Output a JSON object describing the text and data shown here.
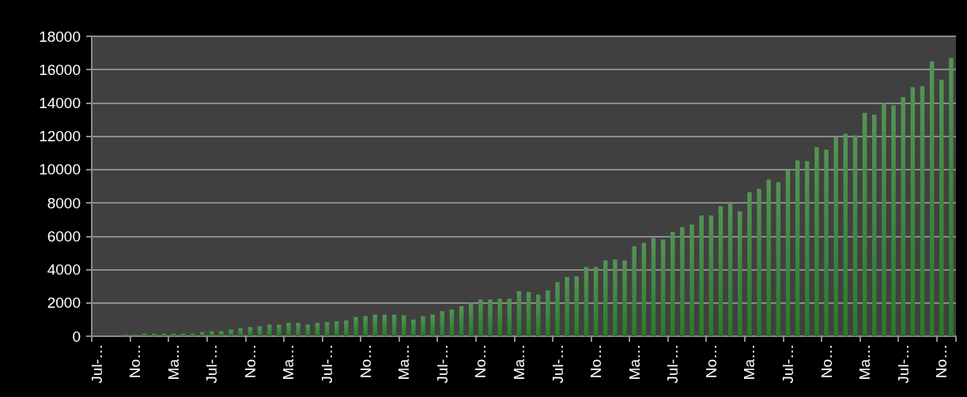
{
  "chart_data": {
    "type": "bar",
    "categories": [
      "Jul-…",
      null,
      null,
      null,
      "No…",
      null,
      null,
      null,
      "Ma…",
      null,
      null,
      null,
      "Jul-…",
      null,
      null,
      null,
      "No…",
      null,
      null,
      null,
      "Ma…",
      null,
      null,
      null,
      "Jul-…",
      null,
      null,
      null,
      "No…",
      null,
      null,
      null,
      "Ma…",
      null,
      null,
      null,
      "Jul-…",
      null,
      null,
      null,
      "No…",
      null,
      null,
      null,
      "Ma…",
      null,
      null,
      null,
      "Jul-…",
      null,
      null,
      null,
      "No…",
      null,
      null,
      null,
      "Ma…",
      null,
      null,
      null,
      "Jul-…",
      null,
      null,
      null,
      "No…",
      null,
      null,
      null,
      "Ma…",
      null,
      null,
      null,
      "Jul-…",
      null,
      null,
      null,
      "No…",
      null,
      null,
      null,
      "Ma…",
      null,
      null,
      null,
      "Jul-…",
      null,
      null,
      null,
      "No…",
      null
    ],
    "values": [
      0,
      0,
      0,
      100,
      100,
      150,
      150,
      150,
      150,
      150,
      150,
      250,
      300,
      300,
      400,
      500,
      550,
      600,
      700,
      700,
      800,
      800,
      700,
      800,
      850,
      900,
      950,
      1150,
      1200,
      1300,
      1300,
      1300,
      1250,
      1000,
      1200,
      1300,
      1500,
      1600,
      1800,
      2000,
      2200,
      2200,
      2250,
      2250,
      2700,
      2650,
      2500,
      2750,
      3250,
      3550,
      3600,
      4150,
      4150,
      4550,
      4600,
      4550,
      5400,
      5600,
      5900,
      5800,
      6250,
      6550,
      6700,
      7250,
      7250,
      7800,
      8000,
      7500,
      8650,
      8850,
      9400,
      9250,
      9950,
      10550,
      10500,
      11350,
      11200,
      11950,
      12150,
      12050,
      13400,
      13300,
      14000,
      13850,
      14350,
      14950,
      15000,
      16500,
      15400,
      16700
    ],
    "color": "#2a7a2a",
    "ylim": [
      0,
      18000
    ],
    "yticks": [
      0,
      2000,
      4000,
      6000,
      8000,
      10000,
      12000,
      14000,
      16000,
      18000
    ],
    "grid": "y"
  }
}
